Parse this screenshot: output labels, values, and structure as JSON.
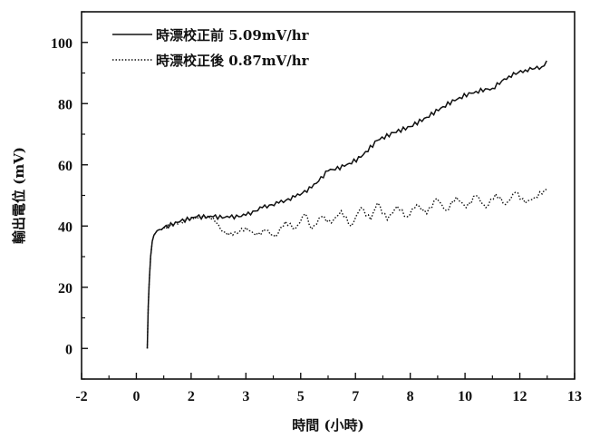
{
  "chart_data": {
    "type": "line",
    "xlabel": "時間 (小時)",
    "ylabel": "輸出電位 (mV)",
    "xlim": [
      -2,
      13
    ],
    "ylim": [
      -10,
      110
    ],
    "xticks": [
      -2,
      0,
      2,
      3,
      5,
      7,
      8,
      10,
      12,
      13
    ],
    "xtick_labels": [
      "-2",
      "0",
      "2",
      "3",
      "5",
      "7",
      "8",
      "10",
      "12",
      "13"
    ],
    "yticks": [
      0,
      20,
      40,
      60,
      80,
      100
    ],
    "ytick_labels": [
      "0",
      "20",
      "40",
      "60",
      "80",
      "100"
    ],
    "legend_position": "top-left",
    "series": [
      {
        "name": "時漂校正前 5.09mV/hr",
        "style": "solid",
        "color": "#111111",
        "x": [
          0,
          0.03,
          0.06,
          0.1,
          0.15,
          0.2,
          0.3,
          0.5,
          1.0,
          1.5,
          2.0,
          2.5,
          3.0,
          3.5,
          4.0,
          4.5,
          5.0,
          5.5,
          6.0,
          6.5,
          7.0,
          7.5,
          8.0,
          8.5,
          9.0,
          9.5,
          10.0,
          10.5,
          11.0,
          11.5,
          12.0,
          12.15
        ],
        "y": [
          0,
          14,
          22,
          30,
          35,
          37,
          38.5,
          39.5,
          41.5,
          43,
          43,
          42.8,
          43.5,
          46,
          47.5,
          49.5,
          52.5,
          58,
          59.5,
          62.5,
          68,
          70.5,
          72.5,
          75.5,
          79,
          82,
          84,
          85,
          89,
          91,
          92,
          94
        ]
      },
      {
        "name": "時漂校正後 0.87mV/hr",
        "style": "dotted",
        "color": "#111111",
        "x": [
          0,
          0.03,
          0.06,
          0.1,
          0.15,
          0.2,
          0.3,
          0.5,
          1.0,
          1.5,
          2.0,
          2.3,
          2.6,
          3.0,
          3.3,
          3.6,
          3.9,
          4.2,
          4.5,
          4.8,
          5.0,
          5.3,
          5.6,
          5.9,
          6.2,
          6.5,
          6.8,
          7.0,
          7.3,
          7.6,
          7.9,
          8.2,
          8.5,
          8.8,
          9.1,
          9.4,
          9.7,
          10.0,
          10.3,
          10.6,
          10.9,
          11.2,
          11.5,
          11.8,
          12.15
        ],
        "y": [
          0,
          14,
          22,
          30,
          35,
          37,
          38.5,
          39.5,
          41.5,
          43,
          42.8,
          38,
          37,
          39.5,
          37,
          38.5,
          36.5,
          41.5,
          39,
          44,
          39,
          43,
          41,
          45,
          40,
          46,
          42,
          47.5,
          42,
          46.5,
          43,
          47,
          44,
          49,
          45,
          49.5,
          46,
          50,
          46,
          50.5,
          47,
          51,
          47.5,
          49.5,
          52
        ]
      }
    ]
  }
}
